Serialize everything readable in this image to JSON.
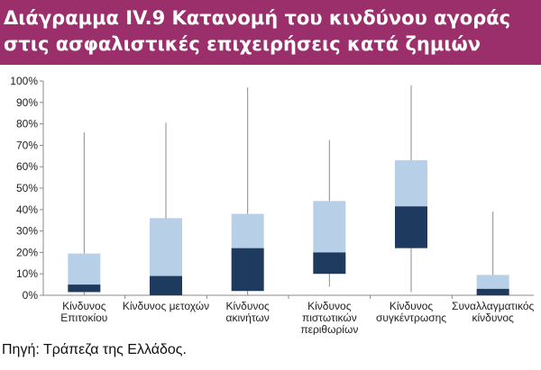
{
  "title": {
    "line1": "Διάγραμμα IV.9 Κατανομή του κινδύνου αγοράς",
    "line2": "στις ασφαλιστικές επιχειρήσεις κατά ζημιών"
  },
  "source": "Πηγή: Τράπεζα της Ελλάδος.",
  "colors": {
    "banner": "#9b2f6b",
    "upper_box": "#b8cfe8",
    "lower_box": "#1f3a5f",
    "whisker": "#8a8a8a",
    "axis": "#888888"
  },
  "chart_data": {
    "type": "boxplot",
    "ylim": [
      0,
      100
    ],
    "yticks": [
      "0%",
      "10%",
      "20%",
      "30%",
      "40%",
      "50%",
      "60%",
      "70%",
      "80%",
      "90%",
      "100%"
    ],
    "yunit": "%",
    "grid": false,
    "categories": [
      [
        "Κίνδυνος",
        "Επιτοκίου"
      ],
      [
        "Κίνδυνος μετοχών"
      ],
      [
        "Κίνδυνος",
        "ακινήτων"
      ],
      [
        "Κίνδυνος",
        "πιστωτικών",
        "περιθωρίων"
      ],
      [
        "Κίνδυνος",
        "συγκέντρωσης"
      ],
      [
        "Συναλλαγματικός",
        "κίνδυνος"
      ]
    ],
    "boxes": [
      {
        "min": 0,
        "q1": 1.5,
        "median": 5,
        "q3": 19.5,
        "max": 76
      },
      {
        "min": 0,
        "q1": 0,
        "median": 9,
        "q3": 36,
        "max": 80.5
      },
      {
        "min": 0,
        "q1": 2,
        "median": 22,
        "q3": 38,
        "max": 97
      },
      {
        "min": 4,
        "q1": 10,
        "median": 20,
        "q3": 44,
        "max": 72.5
      },
      {
        "min": 1.5,
        "q1": 22,
        "median": 41.5,
        "q3": 63,
        "max": 98
      },
      {
        "min": 0,
        "q1": 0,
        "median": 3,
        "q3": 9.5,
        "max": 39
      }
    ]
  }
}
